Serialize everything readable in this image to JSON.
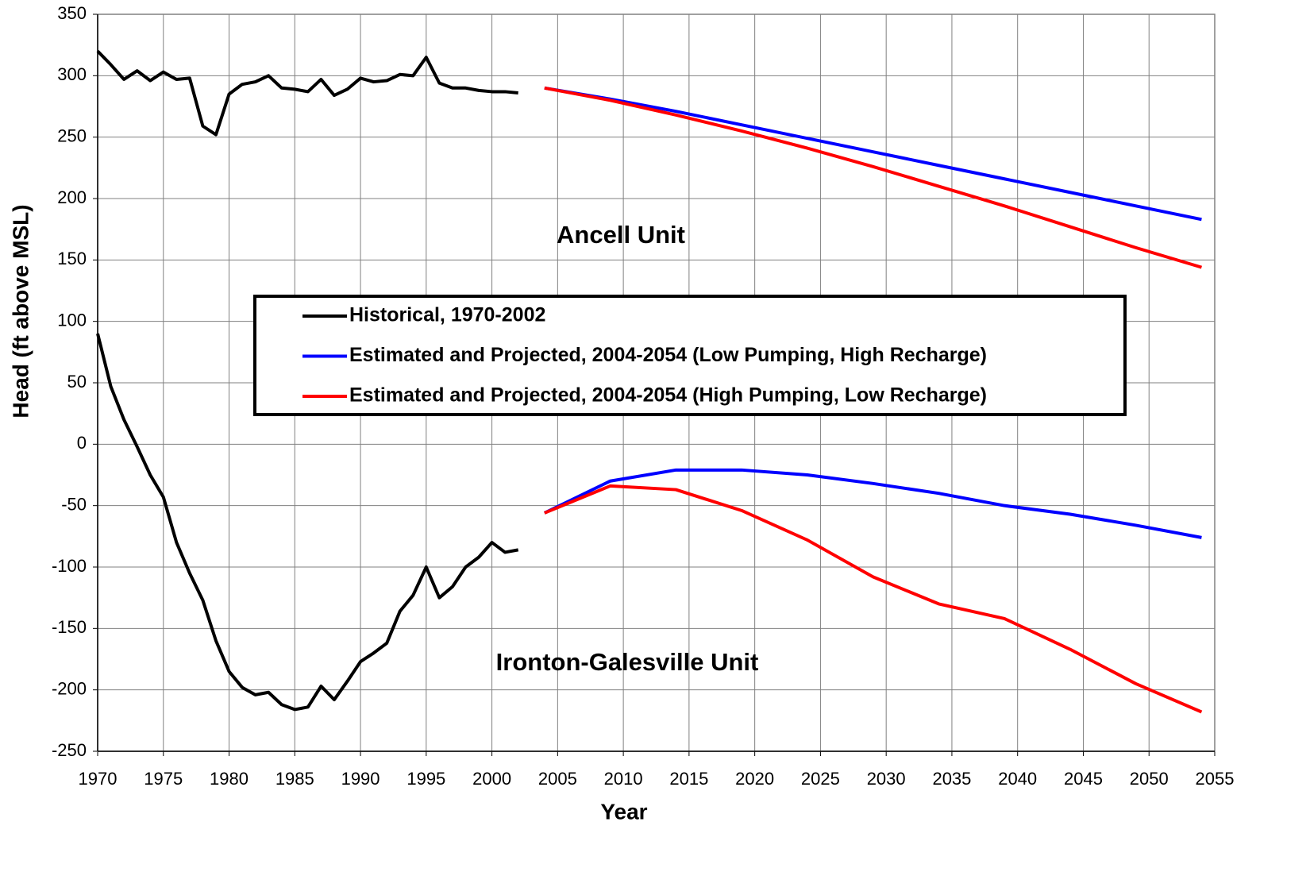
{
  "chart_data": {
    "type": "line",
    "x_label": "Year",
    "y_label": "Head (ft above MSL)",
    "annotations": [
      "Ancell Unit",
      "Ironton-Galesville Unit"
    ],
    "xlim": [
      1970,
      2055
    ],
    "xticks": [
      1970,
      1975,
      1980,
      1985,
      1990,
      1995,
      2000,
      2005,
      2010,
      2015,
      2020,
      2025,
      2030,
      2035,
      2040,
      2045,
      2050,
      2055
    ],
    "ylim": [
      -250,
      350
    ],
    "yticks": [
      -250,
      -200,
      -150,
      -100,
      -50,
      0,
      50,
      100,
      150,
      200,
      250,
      300,
      350
    ],
    "grid": true,
    "series": [
      {
        "name": "Historical, 1970-2002",
        "color": "#000000",
        "x": [
          1970,
          1971,
          1972,
          1973,
          1974,
          1975,
          1976,
          1977,
          1978,
          1979,
          1980,
          1981,
          1982,
          1983,
          1984,
          1985,
          1986,
          1987,
          1988,
          1989,
          1990,
          1991,
          1992,
          1993,
          1994,
          1995,
          1996,
          1997,
          1998,
          1999,
          2000,
          2001,
          2002
        ],
        "ancell_values": [
          320,
          309,
          297,
          304,
          296,
          303,
          297,
          298,
          259,
          252,
          285,
          293,
          295,
          300,
          290,
          289,
          287,
          297,
          284,
          289,
          298,
          295,
          296,
          301,
          300,
          315,
          294,
          290,
          290,
          288,
          287,
          287,
          286
        ],
        "ironton_values": [
          90,
          47,
          20,
          -2,
          -25,
          -43,
          -80,
          -105,
          -127,
          -160,
          -185,
          -198,
          -204,
          -202,
          -212,
          -216,
          -214,
          -197,
          -208,
          -193,
          -177,
          -170,
          -162,
          -136,
          -123,
          -100,
          -125,
          -116,
          -100,
          -92,
          -80,
          -88,
          -86
        ]
      },
      {
        "name": "Estimated and Projected, 2004-2054 (Low Pumping, High Recharge)",
        "color": "#0000ff",
        "x": [
          2004,
          2009,
          2014,
          2019,
          2024,
          2029,
          2034,
          2039,
          2044,
          2049,
          2054
        ],
        "ancell_values": [
          290,
          281,
          271,
          260,
          249,
          238,
          227,
          216,
          205,
          194,
          183
        ],
        "ironton_values": [
          -56,
          -30,
          -21,
          -21,
          -25,
          -32,
          -40,
          -50,
          -57,
          -66,
          -76
        ]
      },
      {
        "name": "Estimated and Projected, 2004-2054 (High Pumping, Low Recharge)",
        "color": "#ff0000",
        "x": [
          2004,
          2009,
          2014,
          2019,
          2024,
          2029,
          2034,
          2039,
          2044,
          2049,
          2054
        ],
        "ancell_values": [
          290,
          280,
          268,
          255,
          241,
          226,
          210,
          194,
          177,
          160,
          144
        ],
        "ironton_values": [
          -56,
          -34,
          -37,
          -54,
          -78,
          -108,
          -130,
          -142,
          -167,
          -195,
          -218
        ]
      }
    ]
  }
}
